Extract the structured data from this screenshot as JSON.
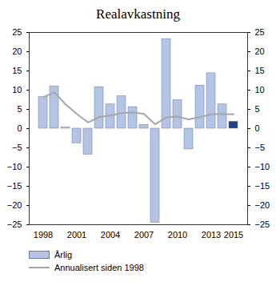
{
  "chart_data": {
    "type": "bar",
    "title": "Realavkastning",
    "categories": [
      "1998",
      null,
      null,
      "2001",
      null,
      null,
      "2004",
      null,
      null,
      "2007",
      null,
      null,
      "2010",
      null,
      null,
      "2013",
      null,
      "2015"
    ],
    "series": [
      {
        "name": "Årlig",
        "type": "bar",
        "color": "#b4c4e4",
        "colors": [
          "#b4c4e4",
          "#b4c4e4",
          "#b4c4e4",
          "#b4c4e4",
          "#b4c4e4",
          "#b4c4e4",
          "#b4c4e4",
          "#b4c4e4",
          "#b4c4e4",
          "#b4c4e4",
          "#b4c4e4",
          "#b4c4e4",
          "#b4c4e4",
          "#b4c4e4",
          "#b4c4e4",
          "#b4c4e4",
          "#b4c4e4",
          "#1f3f7f"
        ],
        "values": [
          8.2,
          11.0,
          0.3,
          -3.8,
          -6.8,
          10.8,
          6.3,
          8.4,
          5.6,
          1.0,
          -24.5,
          23.3,
          7.4,
          -5.4,
          11.2,
          14.4,
          6.3,
          1.8
        ]
      },
      {
        "name": "Annualisert siden 1998",
        "type": "line",
        "color": "#a6a6a6",
        "values": [
          8.2,
          9.4,
          6.3,
          3.8,
          1.6,
          3.0,
          3.4,
          4.0,
          4.2,
          3.8,
          1.1,
          2.9,
          3.1,
          2.4,
          3.0,
          3.7,
          3.8,
          3.7
        ]
      }
    ],
    "ylim": [
      -25,
      25
    ],
    "yticks": [
      -25,
      -20,
      -15,
      -10,
      -5,
      0,
      5,
      10,
      15,
      20,
      25
    ],
    "grid": false,
    "legend": "bottom"
  }
}
